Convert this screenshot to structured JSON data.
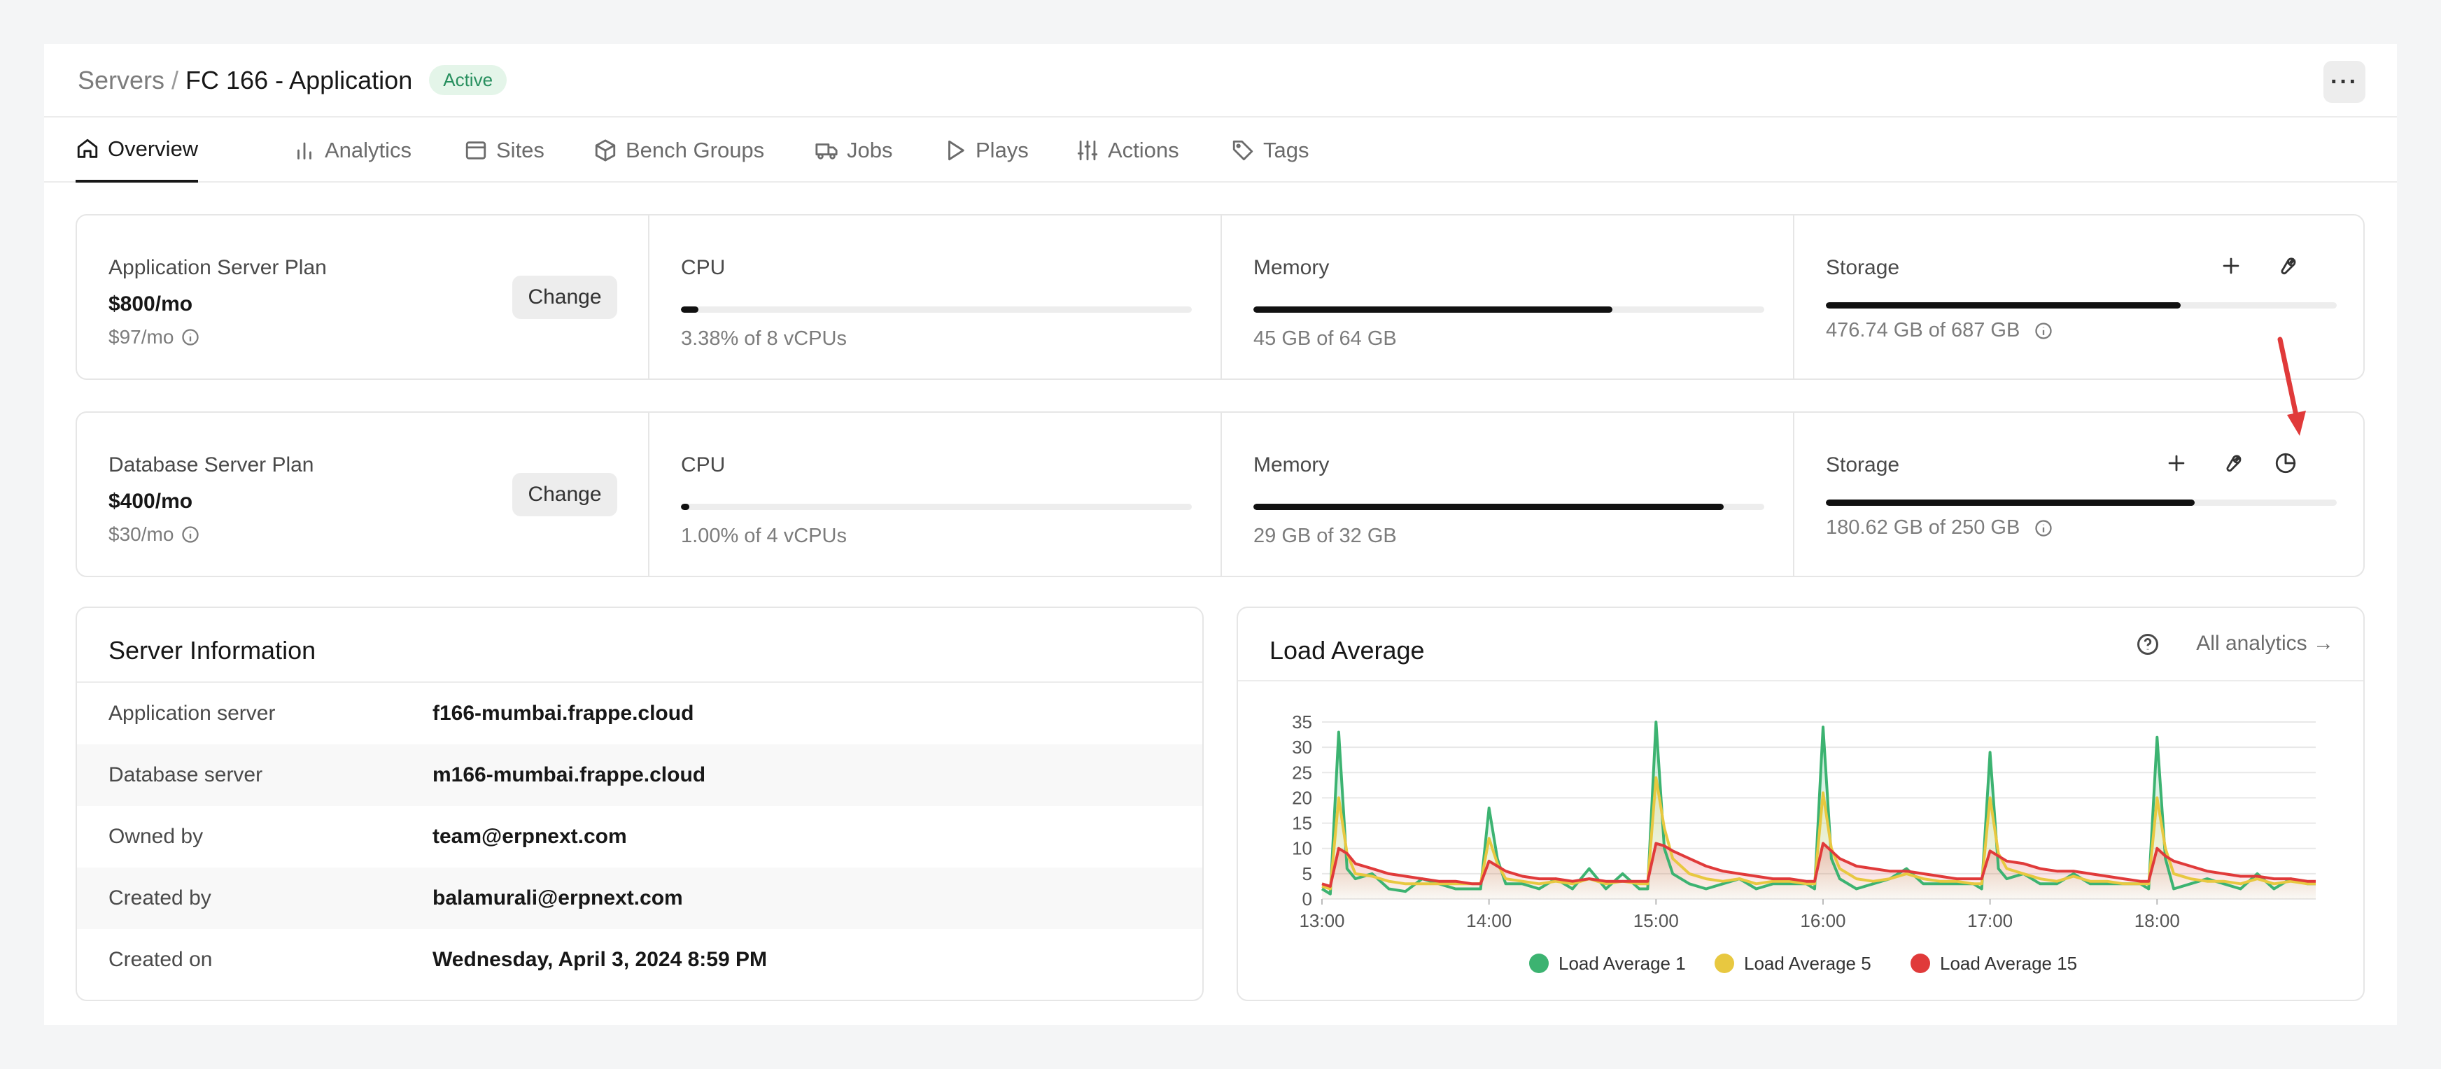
{
  "breadcrumb": {
    "parent": "Servers",
    "separator": "/",
    "current": "FC 166 - Application",
    "status": "Active"
  },
  "header": {
    "more_label": "···"
  },
  "tabs": [
    {
      "label": "Overview",
      "icon": "home-icon",
      "active": true
    },
    {
      "label": "Analytics",
      "icon": "bar-chart-icon"
    },
    {
      "label": "Sites",
      "icon": "browser-icon"
    },
    {
      "label": "Bench Groups",
      "icon": "package-icon"
    },
    {
      "label": "Jobs",
      "icon": "truck-icon"
    },
    {
      "label": "Plays",
      "icon": "play-icon"
    },
    {
      "label": "Actions",
      "icon": "sliders-icon"
    },
    {
      "label": "Tags",
      "icon": "tag-icon"
    }
  ],
  "app_plan": {
    "title": "Application Server Plan",
    "price": "$800/mo",
    "sub_price": "$97/mo",
    "change_label": "Change",
    "cpu": {
      "label": "CPU",
      "value": "3.38% of 8 vCPUs",
      "fraction": 0.0338
    },
    "memory": {
      "label": "Memory",
      "value": "45 GB of 64 GB",
      "fraction": 0.703
    },
    "storage": {
      "label": "Storage",
      "value": "476.74 GB of 687 GB",
      "fraction": 0.694
    }
  },
  "db_plan": {
    "title": "Database Server Plan",
    "price": "$400/mo",
    "sub_price": "$30/mo",
    "change_label": "Change",
    "cpu": {
      "label": "CPU",
      "value": "1.00% of 4 vCPUs",
      "fraction": 0.01
    },
    "memory": {
      "label": "Memory",
      "value": "29 GB of 32 GB",
      "fraction": 0.92
    },
    "storage": {
      "label": "Storage",
      "value": "180.62 GB of 250 GB",
      "fraction": 0.722
    }
  },
  "server_info": {
    "title": "Server Information",
    "rows": [
      {
        "key": "Application server",
        "value": "f166-mumbai.frappe.cloud"
      },
      {
        "key": "Database server",
        "value": "m166-mumbai.frappe.cloud"
      },
      {
        "key": "Owned by",
        "value": "team@erpnext.com"
      },
      {
        "key": "Created by",
        "value": "balamurali@erpnext.com"
      },
      {
        "key": "Created on",
        "value": "Wednesday, April 3, 2024 8:59 PM"
      }
    ]
  },
  "load_average": {
    "title": "Load Average",
    "all_analytics": "All analytics →"
  },
  "chart_data": {
    "type": "line",
    "title": "Load Average",
    "xlabel": "",
    "ylabel": "",
    "ylim": [
      0,
      35
    ],
    "yticks": [
      0,
      5,
      10,
      15,
      20,
      25,
      30,
      35
    ],
    "xlim": [
      13.0,
      18.95
    ],
    "xticks": [
      "13:00",
      "14:00",
      "15:00",
      "16:00",
      "17:00",
      "18:00"
    ],
    "legend_position": "bottom",
    "x": [
      13.0,
      13.05,
      13.1,
      13.15,
      13.2,
      13.3,
      13.4,
      13.5,
      13.6,
      13.7,
      13.8,
      13.9,
      13.95,
      14.0,
      14.05,
      14.1,
      14.2,
      14.3,
      14.4,
      14.5,
      14.6,
      14.7,
      14.8,
      14.9,
      14.95,
      15.0,
      15.05,
      15.1,
      15.2,
      15.3,
      15.4,
      15.5,
      15.6,
      15.7,
      15.8,
      15.9,
      15.95,
      16.0,
      16.05,
      16.1,
      16.2,
      16.3,
      16.4,
      16.5,
      16.6,
      16.7,
      16.8,
      16.9,
      16.95,
      17.0,
      17.05,
      17.1,
      17.2,
      17.3,
      17.4,
      17.5,
      17.6,
      17.7,
      17.8,
      17.9,
      17.95,
      18.0,
      18.05,
      18.1,
      18.2,
      18.3,
      18.4,
      18.5,
      18.6,
      18.7,
      18.8,
      18.9,
      18.95
    ],
    "series": [
      {
        "name": "Load Average 1",
        "color": "#3cb371",
        "values": [
          2,
          1,
          33,
          6,
          4,
          5,
          2,
          1.5,
          4,
          3,
          2,
          2,
          2,
          18,
          8,
          3,
          3,
          2,
          4,
          2,
          6,
          2,
          5,
          2,
          2,
          35,
          10,
          5,
          3,
          2,
          3,
          4,
          2,
          3,
          3,
          3,
          2,
          34,
          8,
          4,
          2,
          3,
          4,
          6,
          3,
          3,
          3,
          3,
          2,
          29,
          6,
          4,
          5,
          3,
          3,
          5,
          3,
          3,
          3,
          3,
          2,
          32,
          8,
          2,
          3,
          4,
          3,
          2,
          5,
          2,
          4,
          3,
          3
        ]
      },
      {
        "name": "Load Average 5",
        "color": "#e8c840",
        "values": [
          2.5,
          2,
          20,
          9,
          5,
          4.5,
          3.5,
          3,
          3,
          3,
          3,
          3,
          3,
          12,
          7,
          4,
          3.5,
          3,
          3.5,
          3,
          4,
          3,
          3.5,
          3,
          3,
          24,
          14,
          8,
          5,
          4,
          3.5,
          4,
          3,
          3.5,
          3.5,
          3,
          3,
          21,
          10,
          6,
          4,
          3.5,
          4,
          5,
          4,
          3.5,
          3.5,
          3,
          3,
          20,
          9,
          6,
          5,
          4,
          3.5,
          4.5,
          3.5,
          3.5,
          3,
          3,
          3,
          20,
          10,
          5,
          4,
          3.5,
          3.5,
          3,
          4,
          3,
          3.5,
          3,
          3
        ]
      },
      {
        "name": "Load Average 15",
        "color": "#e03a3a",
        "values": [
          3,
          2.5,
          10,
          9,
          7,
          6,
          5,
          4.5,
          4,
          3.5,
          3.5,
          3,
          3,
          7.5,
          6.5,
          5.5,
          4.5,
          4,
          4,
          3.5,
          4,
          3.5,
          3.5,
          3.5,
          3.5,
          11,
          10.5,
          9.5,
          8,
          6.5,
          5.5,
          5,
          4.5,
          4,
          4,
          3.5,
          3.5,
          11,
          9.5,
          8,
          6.5,
          6,
          5.5,
          5.5,
          5,
          4.5,
          4,
          4,
          4,
          9.5,
          8.5,
          7.5,
          7,
          6,
          5.5,
          5.5,
          5,
          4.5,
          4,
          3.5,
          3.5,
          10,
          8.5,
          7.5,
          6.5,
          5.5,
          5,
          4.5,
          4.5,
          4,
          4,
          3.5,
          3.5
        ]
      }
    ]
  },
  "annotation": {
    "color": "#e03a3a"
  },
  "colors": {
    "text_dark": "#171717",
    "text_muted": "#7c7c7c",
    "badge_bg": "#e4f5e9",
    "badge_text": "#278f5e",
    "bar_fill": "#111111"
  }
}
